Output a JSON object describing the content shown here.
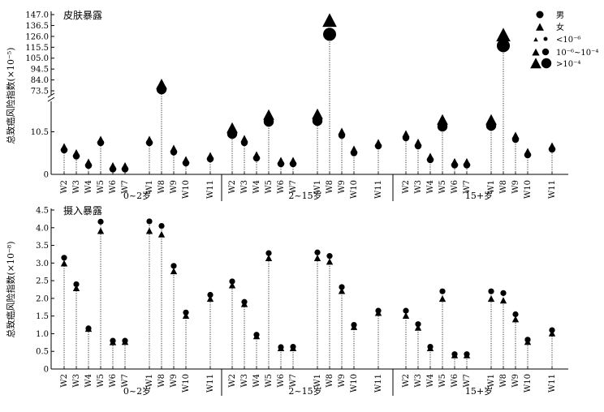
{
  "chart_data": [
    {
      "type": "scatter",
      "title": "皮肤暴露",
      "ylabel": "总致癌风险指数(×10⁻⁵)",
      "y_axis": {
        "broken": true,
        "lower_range": [
          0,
          17
        ],
        "upper_range": [
          73.5,
          147.0
        ],
        "ticks": [
          "0",
          "10.5",
          "73.5",
          "84.0",
          "94.5",
          "105.0",
          "115.5",
          "126.0",
          "136.5",
          "147.0"
        ]
      },
      "groups": [
        {
          "name": "0~2岁",
          "categories": [
            "W2",
            "W3",
            "W4",
            "W5",
            "W6",
            "W7",
            "W1",
            "W8",
            "W9",
            "W10",
            "W11"
          ],
          "male": [
            6.0,
            4.5,
            2.2,
            7.8,
            1.3,
            1.3,
            7.8,
            75.0,
            5.5,
            2.8,
            3.8
          ],
          "female": [
            6.2,
            4.7,
            2.4,
            8.0,
            1.5,
            1.5,
            8.0,
            76.5,
            5.8,
            3.0,
            4.0
          ],
          "male_size": [
            "small",
            "small",
            "small",
            "small",
            "small",
            "small",
            "small",
            "medium",
            "small",
            "small",
            "small"
          ],
          "female_size": [
            "small",
            "small",
            "small",
            "small",
            "small",
            "small",
            "small",
            "medium",
            "small",
            "small",
            "small"
          ]
        },
        {
          "name": "2~15岁",
          "categories": [
            "W2",
            "W3",
            "W4",
            "W5",
            "W6",
            "W7",
            "W1",
            "W8",
            "W9",
            "W10",
            "W11"
          ],
          "male": [
            10.0,
            7.8,
            4.0,
            13.0,
            2.6,
            2.6,
            13.2,
            128.0,
            9.6,
            5.3,
            7.0
          ],
          "female": [
            10.6,
            8.2,
            4.2,
            13.8,
            2.8,
            2.8,
            14.0,
            137.0,
            10.0,
            5.6,
            7.2
          ],
          "male_size": [
            "medium",
            "small",
            "small",
            "medium",
            "small",
            "small",
            "medium",
            "large",
            "small",
            "small",
            "small"
          ],
          "female_size": [
            "medium",
            "small",
            "small",
            "medium",
            "small",
            "small",
            "medium",
            "large",
            "small",
            "small",
            "small"
          ]
        },
        {
          "name": "15+岁",
          "categories": [
            "W2",
            "W3",
            "W4",
            "W5",
            "W6",
            "W7",
            "W1",
            "W8",
            "W9",
            "W10",
            "W11"
          ],
          "male": [
            9.0,
            7.0,
            3.6,
            11.8,
            2.3,
            2.3,
            12.0,
            117.0,
            8.6,
            4.8,
            6.2
          ],
          "female": [
            9.4,
            7.3,
            3.8,
            12.6,
            2.5,
            2.5,
            12.6,
            123.0,
            9.0,
            5.0,
            6.4
          ],
          "male_size": [
            "small",
            "small",
            "small",
            "medium",
            "small",
            "small",
            "medium",
            "large",
            "small",
            "small",
            "small"
          ],
          "female_size": [
            "small",
            "small",
            "small",
            "medium",
            "small",
            "small",
            "medium",
            "large",
            "small",
            "small",
            "small"
          ]
        }
      ],
      "legend": {
        "placement": "top-right",
        "entries": [
          {
            "label": "男",
            "marker": "circle"
          },
          {
            "label": "女",
            "marker": "triangle"
          },
          {
            "label": "<10⁻⁶",
            "marker": "small"
          },
          {
            "label": "10⁻⁶~10⁻⁴",
            "marker": "medium"
          },
          {
            "label": ">10⁻⁴",
            "marker": "large"
          }
        ]
      }
    },
    {
      "type": "scatter",
      "title": "摄入暴露",
      "ylabel": "总致癌风险指数(×10⁻⁸)",
      "ylim": [
        0,
        4.5
      ],
      "yticks": [
        "0",
        "0.5",
        "1.0",
        "1.5",
        "2.0",
        "2.5",
        "3.0",
        "3.5",
        "4.0",
        "4.5"
      ],
      "groups": [
        {
          "name": "0~2岁",
          "categories": [
            "W2",
            "W3",
            "W4",
            "W5",
            "W6",
            "W7",
            "W1",
            "W8",
            "W9",
            "W10",
            "W11"
          ],
          "male": [
            3.15,
            2.4,
            1.15,
            4.17,
            0.8,
            0.8,
            4.18,
            4.05,
            2.92,
            1.6,
            2.1
          ],
          "female": [
            3.0,
            2.3,
            1.15,
            3.92,
            0.77,
            0.78,
            3.92,
            3.82,
            2.78,
            1.52,
            2.0
          ]
        },
        {
          "name": "2~15岁",
          "categories": [
            "W2",
            "W3",
            "W4",
            "W5",
            "W6",
            "W7",
            "W1",
            "W8",
            "W9",
            "W10",
            "W11"
          ],
          "male": [
            2.48,
            1.9,
            0.97,
            3.28,
            0.62,
            0.63,
            3.3,
            3.2,
            2.32,
            1.25,
            1.65
          ],
          "female": [
            2.38,
            1.85,
            0.94,
            3.15,
            0.6,
            0.6,
            3.15,
            3.05,
            2.22,
            1.2,
            1.6
          ]
        },
        {
          "name": "15+岁",
          "categories": [
            "W2",
            "W3",
            "W4",
            "W5",
            "W6",
            "W7",
            "W1",
            "W8",
            "W9",
            "W10",
            "W11"
          ],
          "male": [
            1.65,
            1.27,
            0.63,
            2.2,
            0.42,
            0.42,
            2.2,
            2.15,
            1.55,
            0.83,
            1.1
          ],
          "female": [
            1.52,
            1.18,
            0.6,
            2.0,
            0.4,
            0.4,
            2.0,
            1.95,
            1.42,
            0.78,
            1.02
          ]
        }
      ]
    }
  ]
}
